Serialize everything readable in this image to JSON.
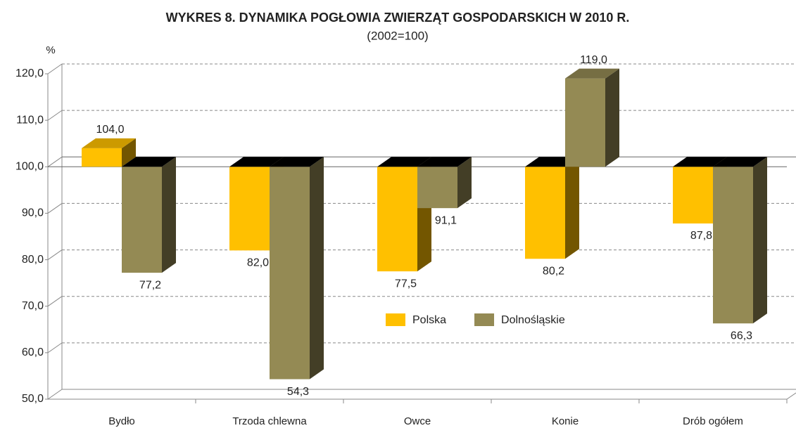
{
  "chart_data": {
    "type": "bar3d",
    "title": "WYKRES 8. DYNAMIKA POGŁOWIA ZWIERZĄT GOSPODARSKICH W 2010 R.",
    "subtitle": "(2002=100)",
    "y_label": "%",
    "base": 100,
    "categories": [
      "Bydło",
      "Trzoda chlewna",
      "Owce",
      "Konie",
      "Drób ogółem"
    ],
    "series": [
      {
        "name": "Polska",
        "color": "#FFC000",
        "values": [
          104.0,
          82.0,
          77.5,
          80.2,
          87.8
        ],
        "value_labels": [
          "104,0",
          "82,0",
          "77,5",
          "80,2",
          "87,8"
        ]
      },
      {
        "name": "Dolnośląskie",
        "color": "#948A54",
        "values": [
          77.2,
          54.3,
          91.1,
          119.0,
          66.3
        ],
        "value_labels": [
          "77,2",
          "54,3",
          "91,1",
          "119,0",
          "66,3"
        ]
      }
    ],
    "ylim": [
      50,
      120
    ],
    "yticks": [
      {
        "value": 50,
        "label": "50,0"
      },
      {
        "value": 60,
        "label": "60,0"
      },
      {
        "value": 70,
        "label": "70,0"
      },
      {
        "value": 80,
        "label": "80,0"
      },
      {
        "value": 90,
        "label": "90,0"
      },
      {
        "value": 100,
        "label": "100,0"
      },
      {
        "value": 110,
        "label": "110,0"
      },
      {
        "value": 120,
        "label": "120,0"
      }
    ],
    "grid": true
  }
}
